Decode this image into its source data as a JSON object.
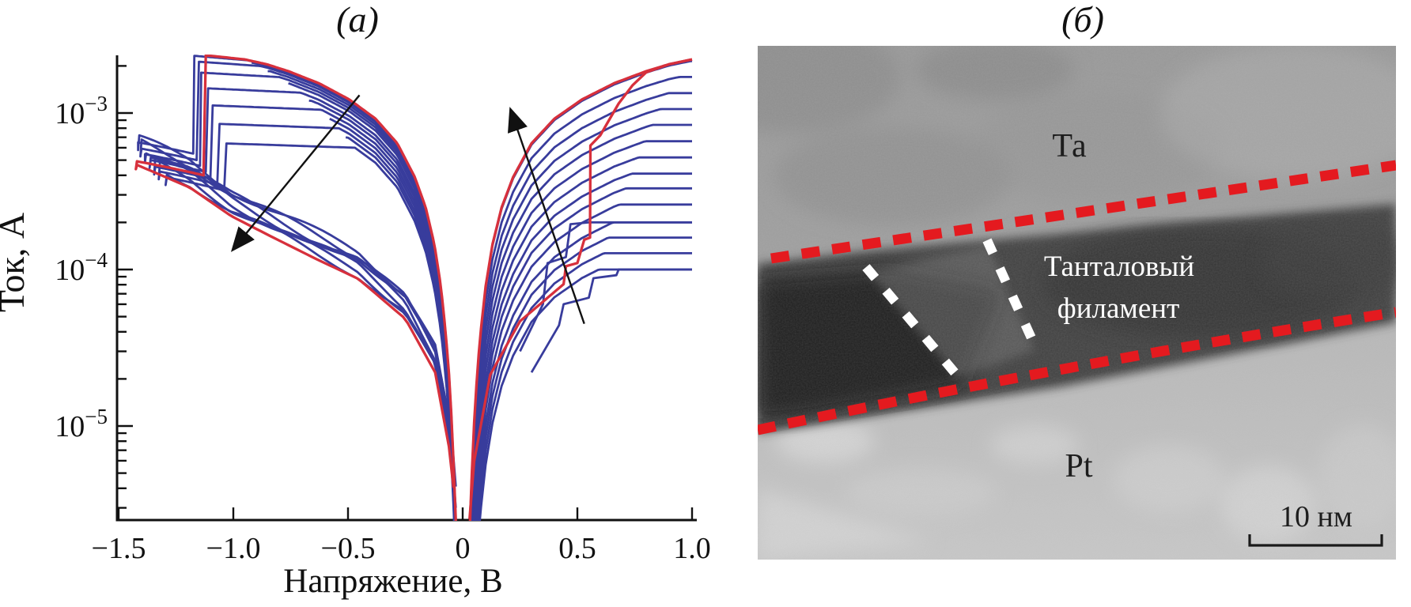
{
  "panels": {
    "a_label": "(а)",
    "b_label": "(б)"
  },
  "chart_data": {
    "type": "line",
    "title": "(а)",
    "xlabel": "Напряжение, В",
    "ylabel": "Ток, А",
    "x_unit": "В",
    "y_unit": "А",
    "xlim": [
      -1.5,
      1.0
    ],
    "ylim": [
      2.6e-06,
      0.0023
    ],
    "y_scale": "log",
    "grid": false,
    "legend": false,
    "x_ticks": [
      -1.5,
      -1.0,
      -0.5,
      0,
      0.5,
      1.0
    ],
    "x_tick_labels": [
      "−1.5",
      "−1.0",
      "−0.5",
      "0",
      "0.5",
      "1.0"
    ],
    "y_major_ticks": [
      {
        "value": 0.001,
        "mantissa": "10",
        "exponent": "−3"
      },
      {
        "value": 0.0001,
        "mantissa": "10",
        "exponent": "−4"
      },
      {
        "value": 1e-05,
        "mantissa": "10",
        "exponent": "−5"
      }
    ],
    "colors": {
      "cycle_blue": "#383c9c",
      "sweep_red": "#d7303c",
      "axis": "#111111",
      "arrow": "#111111"
    },
    "n_cycles": 14,
    "compliance_levels_A": [
      0.0001,
      0.000127,
      0.00016,
      0.0002,
      0.00026,
      0.00033,
      0.00041,
      0.00052,
      0.00066,
      0.00084,
      0.00106,
      0.00134,
      0.0017,
      0.00215
    ],
    "lrs_envelope": [
      [
        0.032,
        2.6e-06
      ],
      [
        0.04,
        5e-06
      ],
      [
        0.05,
        1.05e-05
      ],
      [
        0.065,
        2.4e-05
      ],
      [
        0.08,
        4.2e-05
      ],
      [
        0.1,
        7.8e-05
      ],
      [
        0.13,
        0.000145
      ],
      [
        0.17,
        0.00025
      ],
      [
        0.22,
        0.00039
      ],
      [
        0.3,
        0.00064
      ],
      [
        0.4,
        0.00092
      ],
      [
        0.52,
        0.00122
      ],
      [
        0.66,
        0.00155
      ],
      [
        0.8,
        0.00185
      ],
      [
        0.9,
        0.00205
      ],
      [
        1.0,
        0.0022
      ]
    ],
    "hrs_return": [
      [
        0.03,
        3e-06
      ],
      [
        0.05,
        7e-06
      ],
      [
        0.12,
        2.5e-05
      ],
      [
        0.25,
        5.5e-05
      ],
      [
        0.455,
        9.9e-05
      ],
      [
        0.64,
        0.000133
      ],
      [
        0.82,
        0.00018
      ],
      [
        1.01,
        0.00025
      ],
      [
        1.19,
        0.00038
      ],
      [
        1.42,
        0.00053
      ]
    ],
    "neg_branch_scale": 0.95,
    "left_cycles": [
      {
        "plateau": 0.0006,
        "v_drop": -1.04,
        "drop_to": 0.00032,
        "v_tail_end": -1.3,
        "hrs_mult": 0.95,
        "phase": 0.5
      },
      {
        "plateau": 0.0008,
        "v_drop": -1.07,
        "drop_to": 0.00035,
        "v_tail_end": -1.33,
        "hrs_mult": 1.0,
        "phase": 1.7
      },
      {
        "plateau": 0.00105,
        "v_drop": -1.1,
        "drop_to": 0.00038,
        "v_tail_end": -1.35,
        "hrs_mult": 1.06,
        "phase": 2.9
      },
      {
        "plateau": 0.00135,
        "v_drop": -1.12,
        "drop_to": 0.00042,
        "v_tail_end": -1.37,
        "hrs_mult": 1.12,
        "phase": 4.1
      },
      {
        "plateau": 0.0017,
        "v_drop": -1.145,
        "drop_to": 0.00046,
        "v_tail_end": -1.39,
        "hrs_mult": 1.18,
        "phase": 5.3
      },
      {
        "plateau": 0.002,
        "v_drop": -1.16,
        "drop_to": 0.0005,
        "v_tail_end": -1.41,
        "hrs_mult": 1.24,
        "phase": 0.9
      },
      {
        "plateau": 0.00218,
        "v_drop": -1.175,
        "drop_to": 0.00055,
        "v_tail_end": -1.42,
        "hrs_mult": 1.3,
        "phase": 2.1
      }
    ],
    "left_fillers": [
      0.0007,
      0.00092,
      0.0012,
      0.00155,
      0.00185,
      0.0021
    ],
    "set_steps_blue": [
      [
        [
          0.3,
          2.2e-05
        ],
        [
          0.42,
          4.4e-05
        ],
        [
          0.44,
          6e-05
        ],
        [
          0.55,
          6.6e-05
        ],
        [
          0.57,
          8.8e-05
        ],
        [
          0.67,
          9.2e-05
        ],
        [
          0.68,
          0.0001
        ],
        [
          1.0,
          0.0001
        ]
      ],
      [
        [
          0.25,
          3e-05
        ],
        [
          0.35,
          6e-05
        ],
        [
          0.37,
          0.00011
        ],
        [
          0.45,
          0.00012
        ],
        [
          0.47,
          0.000195
        ],
        [
          0.55,
          0.0002
        ],
        [
          1.0,
          0.0002
        ]
      ]
    ],
    "red_set_path": [
      [
        0.45,
        0.000105
      ],
      [
        0.5,
        0.00011
      ],
      [
        0.53,
        0.000155
      ],
      [
        0.555,
        0.00016
      ],
      [
        0.557,
        0.00062
      ],
      [
        0.575,
        0.00066
      ],
      [
        0.6,
        0.00072
      ],
      [
        0.63,
        0.00086
      ],
      [
        0.68,
        0.00115
      ],
      [
        0.74,
        0.0015
      ],
      [
        0.8,
        0.00182
      ],
      [
        0.9,
        0.00205
      ],
      [
        1.0,
        0.0022
      ]
    ],
    "red_left": {
      "plateau": 0.0022,
      "v_drop": -1.13,
      "drop_to": 0.0004,
      "v_tail_end": -1.43,
      "hrs_mult": 0.88,
      "phase": 0
    },
    "red_hrs_up_mult": 0.85,
    "arrows": [
      {
        "from": [
          -0.45,
          0.0013
        ],
        "to": [
          -1.0,
          0.000135
        ]
      },
      {
        "from": [
          0.53,
          4.5e-05
        ],
        "to": [
          0.21,
          0.00104
        ]
      }
    ]
  },
  "tem": {
    "electrode_top_label": "Та",
    "electrode_bottom_label": "Pt",
    "filament_label_line1": "Танталовый",
    "filament_label_line2": "филамент",
    "scale_bar_label": "10 нм",
    "boundary_color": "#e41a1f",
    "marker_color": "#ffffff"
  }
}
